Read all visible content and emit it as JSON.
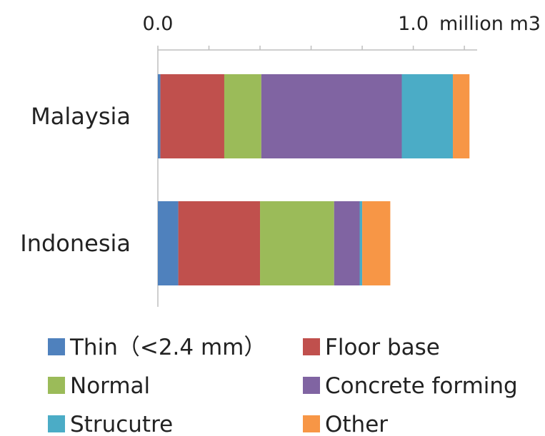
{
  "chart_data": {
    "type": "bar",
    "orientation": "horizontal",
    "stacked": true,
    "unit_label": "million m3",
    "xlim": [
      0,
      1.25
    ],
    "x_tick_labels": [
      {
        "value": 0,
        "label": "0.0"
      },
      {
        "value": 1,
        "label": "1.0"
      }
    ],
    "x_minor_ticks": [
      0,
      0.2,
      0.4,
      0.6,
      0.8,
      1.0,
      1.2
    ],
    "grid": false,
    "legend_position": "bottom",
    "categories": [
      "Malaysia",
      "Indonesia"
    ],
    "series": [
      {
        "name": "Thin（<2.4 mm）",
        "color": "#4f81bd",
        "values": [
          0.01,
          0.08
        ]
      },
      {
        "name": "Floor base",
        "color": "#c0504d",
        "values": [
          0.25,
          0.32
        ]
      },
      {
        "name": "Normal",
        "color": "#9bbb59",
        "values": [
          0.145,
          0.29
        ]
      },
      {
        "name": "Concrete forming",
        "color": "#8064a2",
        "values": [
          0.55,
          0.1
        ]
      },
      {
        "name": "Strucutre",
        "color": "#4bacc6",
        "values": [
          0.2,
          0.01
        ]
      },
      {
        "name": "Other",
        "color": "#f79646",
        "values": [
          0.065,
          0.11
        ]
      }
    ]
  }
}
